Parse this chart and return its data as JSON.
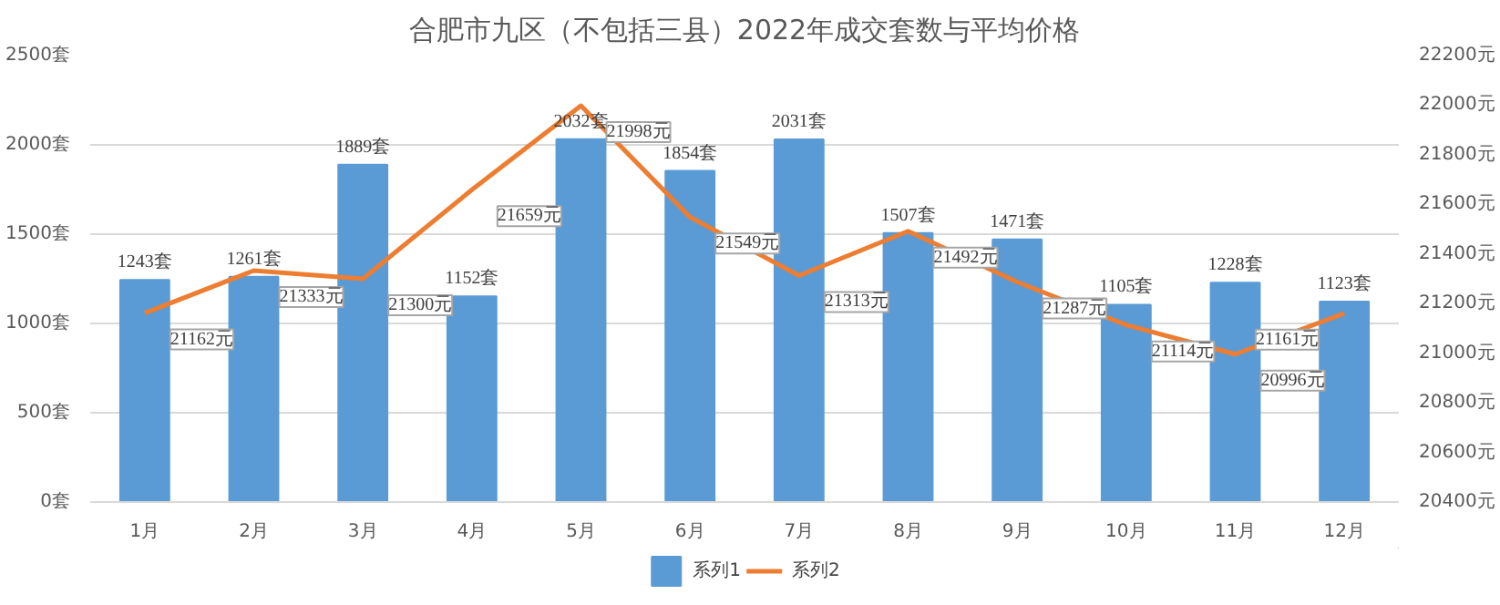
{
  "chart_data": {
    "type": "bar",
    "title": "合肥市九区（不包括三县）2022年成交套数与平均价格",
    "categories": [
      "1月",
      "2月",
      "3月",
      "4月",
      "5月",
      "6月",
      "7月",
      "8月",
      "9月",
      "10月",
      "11月",
      "12月"
    ],
    "series": [
      {
        "name": "系列1",
        "color": "#5b9bd5",
        "values": [
          1243,
          1261,
          1889,
          1152,
          2032,
          1854,
          2031,
          1507,
          1471,
          1105,
          1228,
          1123
        ],
        "value_labels": [
          "1243套",
          "1261套",
          "1889套",
          "1152套",
          "2032套",
          "1854套",
          "2031套",
          "1507套",
          "1471套",
          "1105套",
          "1228套",
          "1123套"
        ]
      },
      {
        "name": "系列2",
        "type": "line",
        "axis": "y2",
        "color": "#ed7d31",
        "values": [
          21162,
          21333,
          21300,
          21659,
          21998,
          21549,
          21313,
          21492,
          21287,
          21114,
          20996,
          21161
        ],
        "value_labels": [
          "21162元",
          "21333元",
          "21300元",
          "21659元",
          "21998元",
          "21549元",
          "21313元",
          "21492元",
          "21287元",
          "21114元",
          "20996元",
          "21161元"
        ]
      }
    ],
    "ylim": [
      0,
      2500
    ],
    "yticks": [
      {
        "value": 0,
        "label": "0套"
      },
      {
        "value": 500,
        "label": "500套"
      },
      {
        "value": 1000,
        "label": "1000套"
      },
      {
        "value": 1500,
        "label": "1500套"
      },
      {
        "value": 2000,
        "label": "2000套"
      },
      {
        "value": 2500,
        "label": "2500套"
      }
    ],
    "y2lim": [
      20400,
      22200
    ],
    "y2ticks": [
      {
        "value": 20400,
        "label": "20400元"
      },
      {
        "value": 20600,
        "label": "20600元"
      },
      {
        "value": 20800,
        "label": "20800元"
      },
      {
        "value": 21000,
        "label": "21000元"
      },
      {
        "value": 21200,
        "label": "21200元"
      },
      {
        "value": 21400,
        "label": "21400元"
      },
      {
        "value": 21600,
        "label": "21600元"
      },
      {
        "value": 21800,
        "label": "21800元"
      },
      {
        "value": 22000,
        "label": "22000元"
      },
      {
        "value": 22200,
        "label": "22200元"
      }
    ],
    "grid": "y",
    "legend": "bottom"
  }
}
